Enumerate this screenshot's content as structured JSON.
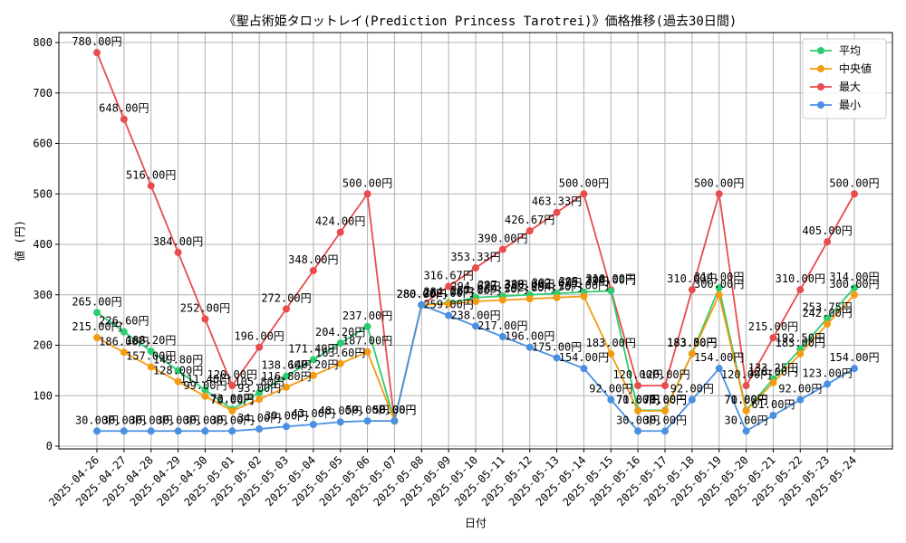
{
  "chart_data": {
    "type": "line",
    "title": "《聖占術姫タロットレイ(Prediction Princess Tarotrei)》価格推移(過去30日間)",
    "xlabel": "日付",
    "ylabel": "値 (円)",
    "ylim": [
      0,
      800
    ],
    "yticks": [
      "0",
      "100",
      "200",
      "300",
      "400",
      "500",
      "600",
      "700",
      "800"
    ],
    "grid": true,
    "legend_position": "top-right",
    "value_suffix": "円",
    "categories": [
      "2025-04-26",
      "2025-04-27",
      "2025-04-28",
      "2025-04-29",
      "2025-04-30",
      "2025-05-01",
      "2025-05-02",
      "2025-05-03",
      "2025-05-04",
      "2025-05-05",
      "2025-05-06",
      "2025-05-07",
      "2025-05-08",
      "2025-05-09",
      "2025-05-10",
      "2025-05-11",
      "2025-05-12",
      "2025-05-13",
      "2025-05-14",
      "2025-05-15",
      "2025-05-16",
      "2025-05-17",
      "2025-05-18",
      "2025-05-19",
      "2025-05-20",
      "2025-05-21",
      "2025-05-22",
      "2025-05-23",
      "2025-05-24"
    ],
    "series": [
      {
        "name": "平均",
        "color": "#2ecc71",
        "values": [
          265.0,
          226.6,
          188.2,
          149.8,
          111.4,
          73.0,
          105.8,
          138.6,
          171.4,
          204.2,
          237.0,
          50.0,
          280.0,
          284.0,
          294.67,
          297.33,
          300.0,
          302.67,
          305.33,
          308.0,
          71.0,
          71.0,
          183.5,
          314.0,
          71.0,
          133.25,
          192.5,
          253.75,
          314.0
        ]
      },
      {
        "name": "中央値",
        "color": "#f39c12",
        "values": [
          215.0,
          186.0,
          157.0,
          128.0,
          99.0,
          70.0,
          93.0,
          116.8,
          140.2,
          163.6,
          187.0,
          50.0,
          280.0,
          282.0,
          287.0,
          289.5,
          292.0,
          294.5,
          297.0,
          183.0,
          70.0,
          70.0,
          183.0,
          300.0,
          70.0,
          126.0,
          183.0,
          242.0,
          300.0
        ]
      },
      {
        "name": "最大",
        "color": "#e84c4c",
        "values": [
          780.0,
          648.0,
          516.0,
          384.0,
          252.0,
          120.0,
          196.0,
          272.0,
          348.0,
          424.0,
          500.0,
          50.0,
          280.0,
          316.67,
          353.33,
          390.0,
          426.67,
          463.33,
          500.0,
          310.0,
          120.0,
          120.0,
          310.0,
          500.0,
          120.0,
          215.0,
          310.0,
          405.0,
          500.0
        ]
      },
      {
        "name": "最小",
        "color": "#4a90e2",
        "values": [
          30.0,
          30.0,
          30.0,
          30.0,
          30.0,
          30.0,
          34.0,
          39.0,
          43.0,
          48.0,
          50.0,
          50.0,
          280.0,
          259.0,
          238.0,
          217.0,
          196.0,
          175.0,
          154.0,
          92.0,
          30.0,
          30.0,
          92.0,
          154.0,
          30.0,
          61.0,
          92.0,
          123.0,
          154.0
        ]
      }
    ]
  }
}
